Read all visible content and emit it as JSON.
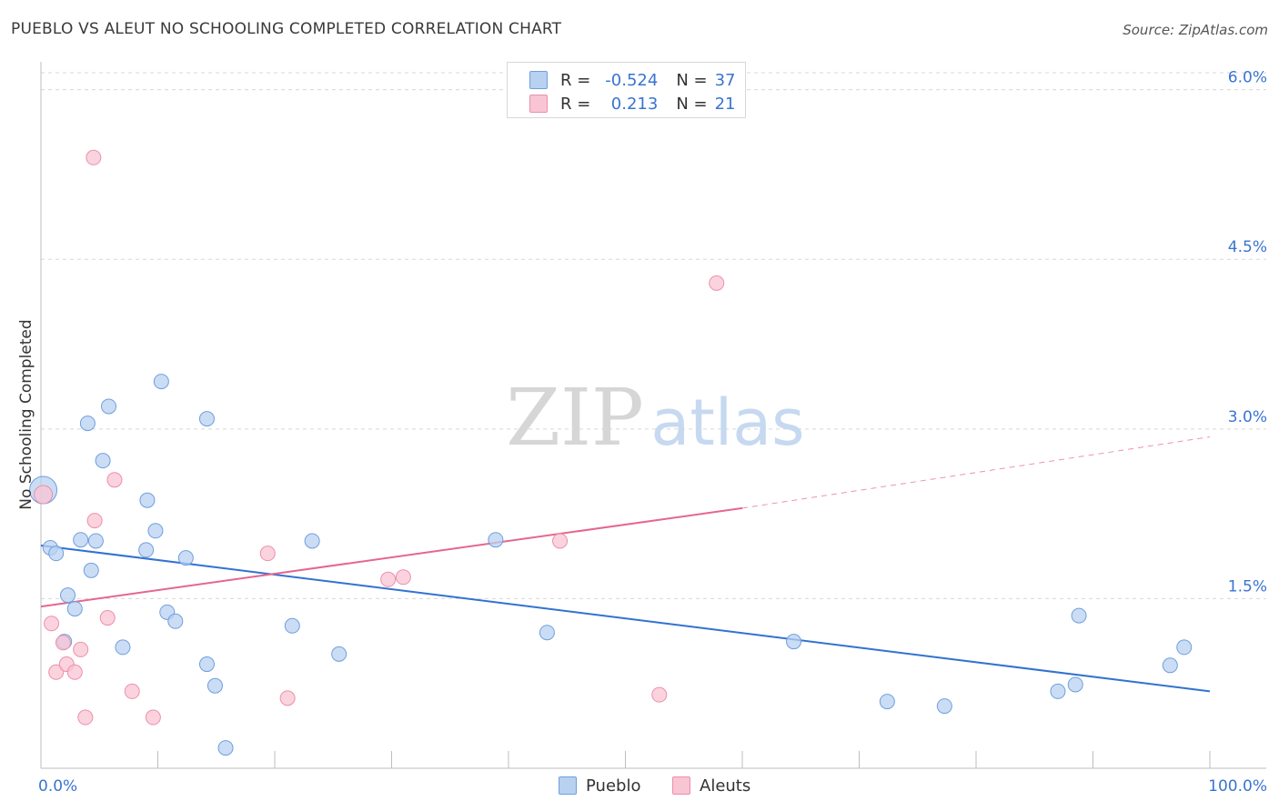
{
  "header": {
    "title": "PUEBLO VS ALEUT NO SCHOOLING COMPLETED CORRELATION CHART",
    "source": "Source: ZipAtlas.com"
  },
  "watermark": {
    "zip": "ZIP",
    "atlas": "atlas"
  },
  "legend": {
    "rows": [
      {
        "r_label": "R =",
        "r_value": "-0.524",
        "n_label": "N =",
        "n_value": "37"
      },
      {
        "r_label": "R =",
        "r_value": "0.213",
        "n_label": "N =",
        "n_value": "21"
      }
    ]
  },
  "bottom_legend": {
    "pueblo": "Pueblo",
    "aleuts": "Aleuts"
  },
  "colors": {
    "pueblo_fill": "#b8d1f1",
    "pueblo_stroke": "#6f9fdc",
    "pueblo_line": "#3272d2",
    "aleut_fill": "#f9c4d3",
    "aleut_stroke": "#ec8fab",
    "aleut_line": "#e5668f",
    "tick_label": "#3a74d0",
    "grid": "#d8d8d8"
  },
  "chart_data": {
    "type": "scatter",
    "title": "PUEBLO VS ALEUT NO SCHOOLING COMPLETED CORRELATION CHART",
    "xlabel": "",
    "ylabel": "No Schooling Completed",
    "xlim": [
      0,
      100
    ],
    "ylim": [
      0,
      6.15
    ],
    "x_tick_labels": [
      {
        "value": 0,
        "label": "0.0%"
      },
      {
        "value": 100,
        "label": "100.0%"
      }
    ],
    "y_tick_labels": [
      {
        "value": 1.5,
        "label": "1.5%"
      },
      {
        "value": 3.0,
        "label": "3.0%"
      },
      {
        "value": 4.5,
        "label": "4.5%"
      },
      {
        "value": 6.0,
        "label": "6.0%"
      }
    ],
    "x_minor_ticks": [
      0,
      10,
      20,
      30,
      40,
      50,
      60,
      70,
      80,
      90,
      100
    ],
    "series": [
      {
        "name": "Pueblo",
        "r": -0.524,
        "n": 37,
        "trend": {
          "x_start": 0,
          "y_start": 1.97,
          "x_end": 100,
          "y_end": 0.68
        },
        "points": [
          [
            0.2,
            2.46,
            15
          ],
          [
            0.8,
            1.95,
            8
          ],
          [
            1.3,
            1.9,
            8
          ],
          [
            2.0,
            1.12,
            8
          ],
          [
            2.3,
            1.53,
            8
          ],
          [
            2.9,
            1.41,
            8
          ],
          [
            3.4,
            2.02,
            8
          ],
          [
            4.0,
            3.05,
            8
          ],
          [
            4.3,
            1.75,
            8
          ],
          [
            4.7,
            2.01,
            8
          ],
          [
            5.3,
            2.72,
            8
          ],
          [
            5.8,
            3.2,
            8
          ],
          [
            7.0,
            1.07,
            8
          ],
          [
            9.0,
            1.93,
            8
          ],
          [
            9.1,
            2.37,
            8
          ],
          [
            9.8,
            2.1,
            8
          ],
          [
            10.3,
            3.42,
            8
          ],
          [
            10.8,
            1.38,
            8
          ],
          [
            11.5,
            1.3,
            8
          ],
          [
            12.4,
            1.86,
            8
          ],
          [
            14.2,
            0.92,
            8
          ],
          [
            14.2,
            3.09,
            8
          ],
          [
            14.9,
            0.73,
            8
          ],
          [
            15.8,
            0.18,
            8
          ],
          [
            21.5,
            1.26,
            8
          ],
          [
            23.2,
            2.01,
            8
          ],
          [
            25.5,
            1.01,
            8
          ],
          [
            38.9,
            2.02,
            8
          ],
          [
            43.3,
            1.2,
            8
          ],
          [
            64.4,
            1.12,
            8
          ],
          [
            72.4,
            0.59,
            8
          ],
          [
            77.3,
            0.55,
            8
          ],
          [
            87.0,
            0.68,
            8
          ],
          [
            88.5,
            0.74,
            8
          ],
          [
            88.8,
            1.35,
            8
          ],
          [
            96.6,
            0.91,
            8
          ],
          [
            97.8,
            1.07,
            8
          ]
        ]
      },
      {
        "name": "Aleuts",
        "r": 0.213,
        "n": 21,
        "trend": {
          "x_start": 0,
          "y_start": 1.43,
          "x_end": 60,
          "y_end": 2.3,
          "dashed_to_x": 100,
          "dashed_to_y": 2.93
        },
        "points": [
          [
            0.2,
            2.42,
            10
          ],
          [
            0.9,
            1.28,
            8
          ],
          [
            1.3,
            0.85,
            8
          ],
          [
            1.9,
            1.11,
            8
          ],
          [
            2.2,
            0.92,
            8
          ],
          [
            2.9,
            0.85,
            8
          ],
          [
            3.4,
            1.05,
            8
          ],
          [
            3.8,
            0.45,
            8
          ],
          [
            4.5,
            5.4,
            8
          ],
          [
            4.6,
            2.19,
            8
          ],
          [
            5.7,
            1.33,
            8
          ],
          [
            6.3,
            2.55,
            8
          ],
          [
            7.8,
            0.68,
            8
          ],
          [
            9.6,
            0.45,
            8
          ],
          [
            19.4,
            1.9,
            8
          ],
          [
            21.1,
            0.62,
            8
          ],
          [
            29.7,
            1.67,
            8
          ],
          [
            31.0,
            1.69,
            8
          ],
          [
            44.4,
            2.01,
            8
          ],
          [
            52.9,
            0.65,
            8
          ],
          [
            57.8,
            4.29,
            8
          ]
        ]
      }
    ]
  }
}
